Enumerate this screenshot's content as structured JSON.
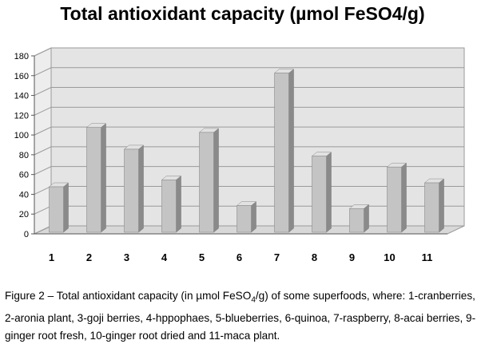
{
  "chart_data": {
    "type": "bar",
    "title": "Total antioxidant capacity (µmol FeSO4/g)",
    "categories": [
      "1",
      "2",
      "3",
      "4",
      "5",
      "6",
      "7",
      "8",
      "9",
      "10",
      "11"
    ],
    "values": [
      46,
      106,
      84,
      53,
      101,
      27,
      161,
      77,
      24,
      66,
      50
    ],
    "ylim": [
      0,
      180
    ],
    "yticks": [
      0,
      20,
      40,
      60,
      80,
      100,
      120,
      140,
      160,
      180
    ],
    "grid": true,
    "legend": "none",
    "bar_color": "#c4c4c4"
  },
  "caption": {
    "prefix": "Figure 2 – Total antioxidant capacity  (in µmol FeSO",
    "subscript": "4",
    "suffix": "/g) of some superfoods, where: 1-cranberries, 2-aronia plant, 3-goji berries, 4-hppophaes, 5-blueberries, 6-quinoa, 7-raspberry, 8-acai berries, 9-ginger root fresh, 10-ginger root dried and 11-maca plant."
  }
}
